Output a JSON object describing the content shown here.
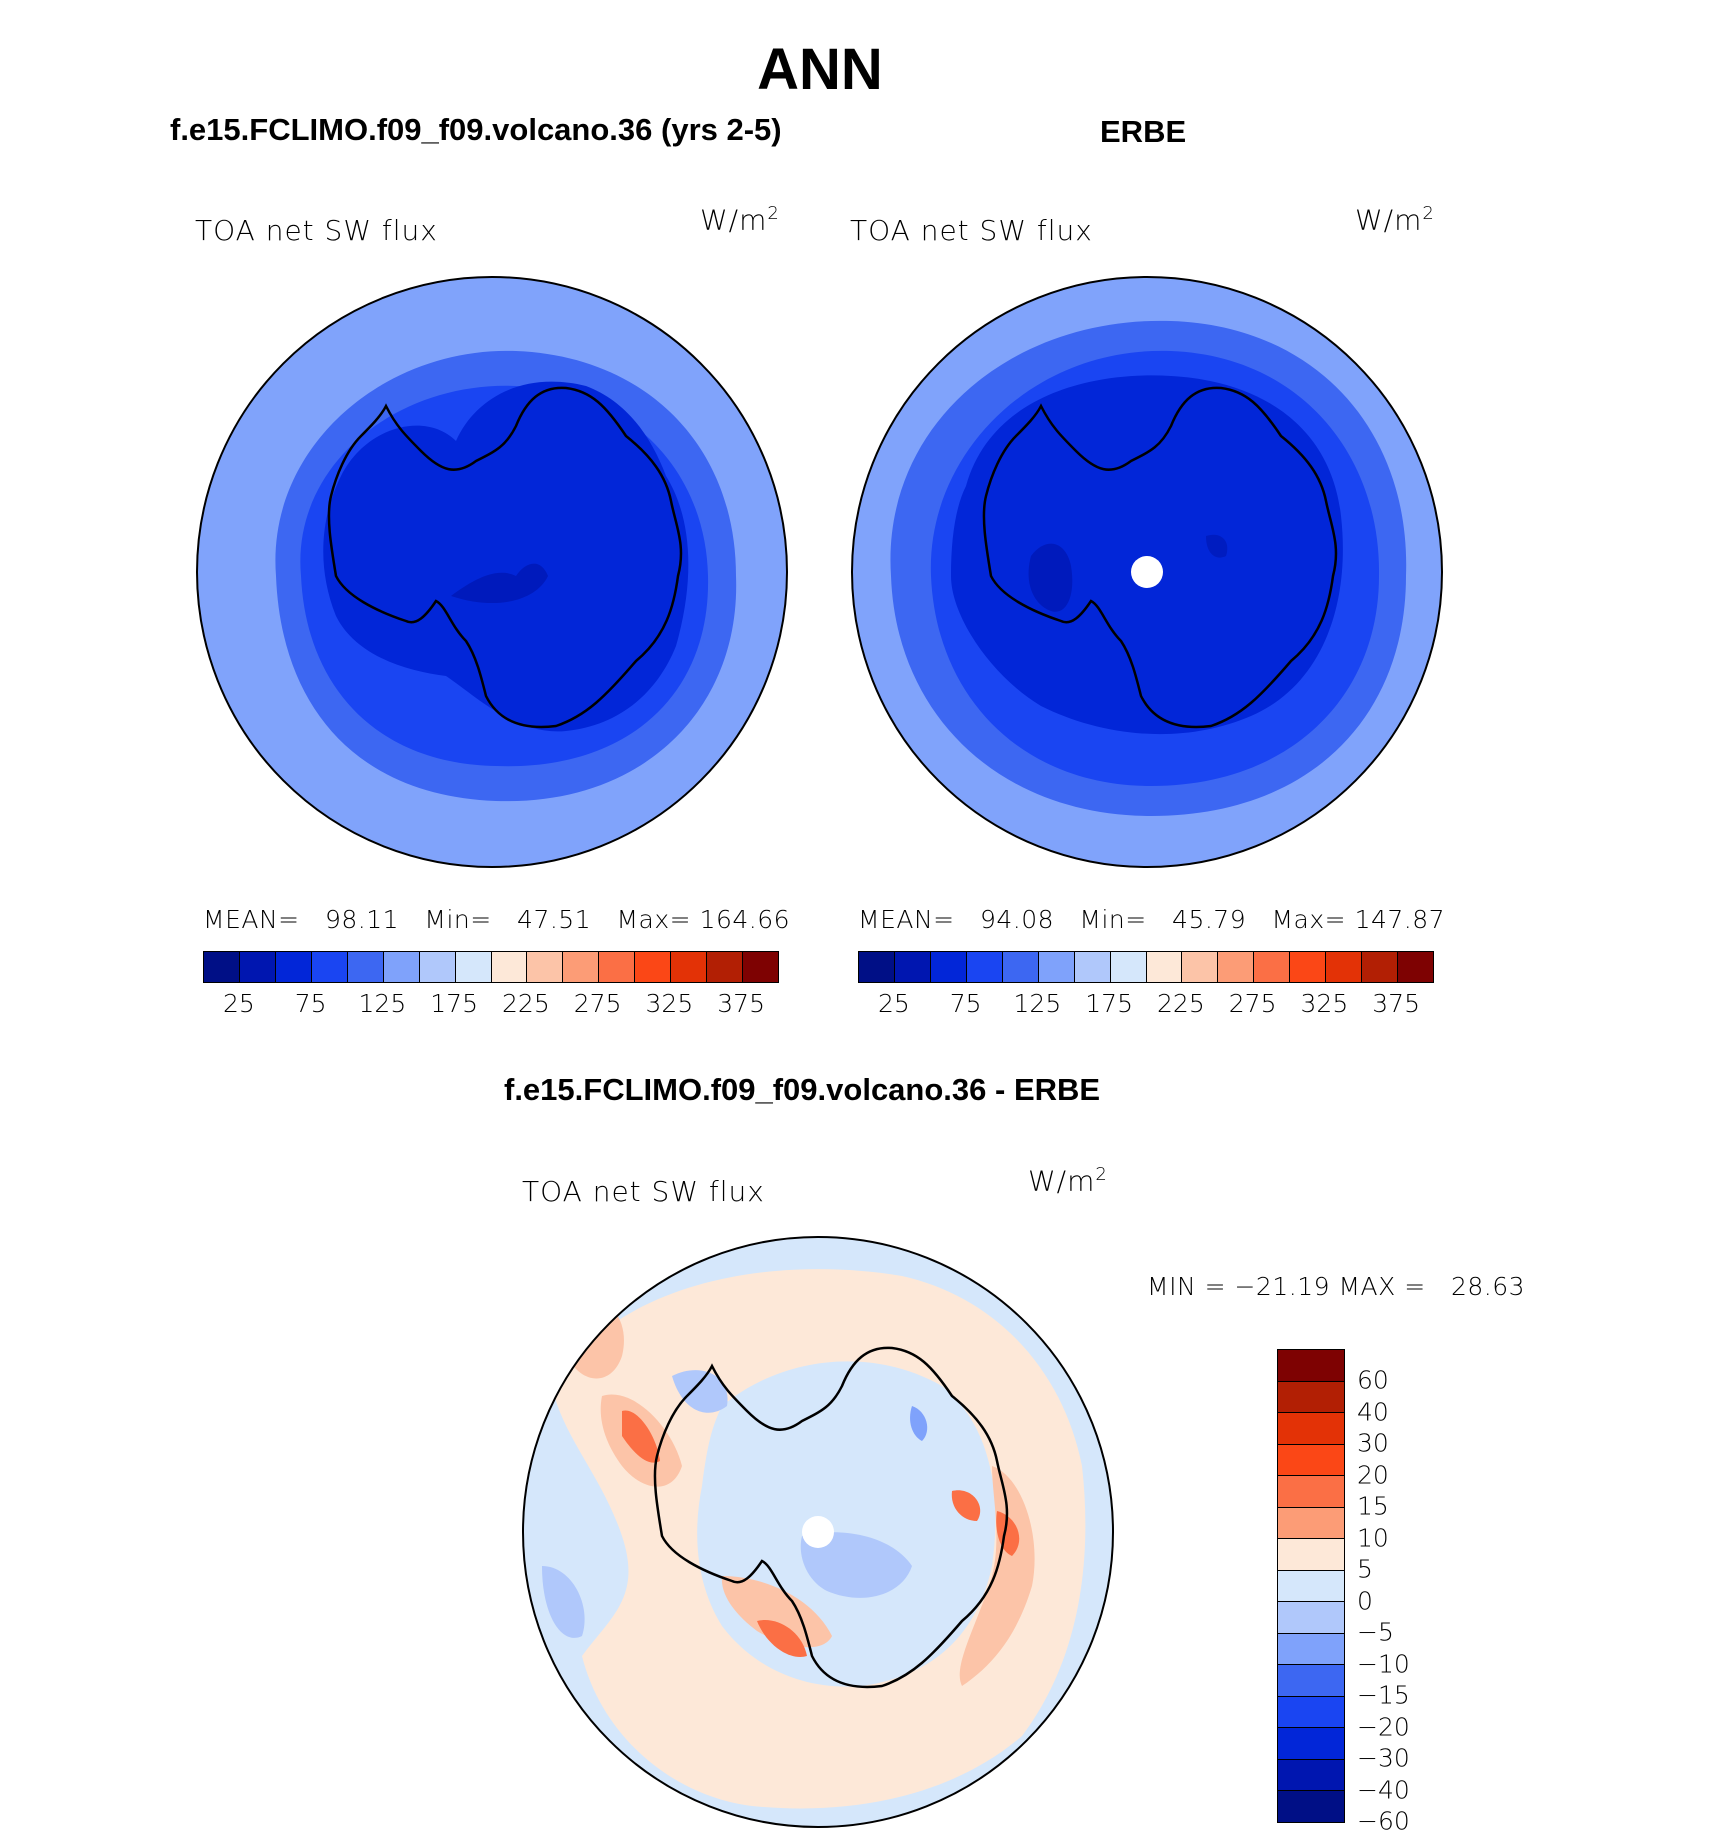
{
  "title": "ANN",
  "panel_left": {
    "case_title": "f.e15.FCLIMO.f09_f09.volcano.36 (yrs 2-5)",
    "variable": "TOA net SW flux",
    "units_base": "W/m",
    "units_exp": "2",
    "stats": {
      "mean_label": "MEAN=",
      "mean": "98.11",
      "min_label": "Min=",
      "min": "47.51",
      "max_label": "Max=",
      "max": "164.66"
    }
  },
  "panel_right": {
    "case_title": "ERBE",
    "variable": "TOA net SW flux",
    "units_base": "W/m",
    "units_exp": "2",
    "stats": {
      "mean_label": "MEAN=",
      "mean": "94.08",
      "min_label": "Min=",
      "min": "45.79",
      "max_label": "Max=",
      "max": "147.87"
    }
  },
  "panel_diff": {
    "case_title": "f.e15.FCLIMO.f09_f09.volcano.36 - ERBE",
    "variable": "TOA net SW flux",
    "units_base": "W/m",
    "units_exp": "2",
    "minmax": "MIN = −21.19 MAX =   28.63"
  },
  "colorbar_abs": {
    "colors": [
      "#000f86",
      "#0016b0",
      "#0226d8",
      "#1a45f2",
      "#3d67f2",
      "#7fa2fb",
      "#b0c8fb",
      "#d5e7fb",
      "#fde8d8",
      "#fcc4a8",
      "#fc9c76",
      "#fb6f45",
      "#fb4716",
      "#e33206",
      "#b21f04",
      "#7e0202"
    ],
    "ticks": [
      "25",
      "75",
      "125",
      "175",
      "225",
      "275",
      "325",
      "375"
    ]
  },
  "colorbar_diff": {
    "colors": [
      "#7e0202",
      "#b21f04",
      "#e33206",
      "#fb4716",
      "#fb6f45",
      "#fc9c76",
      "#fde8d8",
      "#d5e7fb",
      "#b0c8fb",
      "#7fa2fb",
      "#3d67f2",
      "#1a45f2",
      "#0226d8",
      "#0016b0",
      "#000f86"
    ],
    "ticks": [
      "60",
      "40",
      "30",
      "20",
      "15",
      "10",
      "5",
      "0",
      "−5",
      "−10",
      "−15",
      "−20",
      "−30",
      "−40",
      "−60"
    ]
  },
  "map_colors": {
    "outer": "#80a3fb",
    "ring1": "#3d67f2",
    "ring2": "#1a45f2",
    "inner": "#0226d8",
    "deep": "#0016b0",
    "diff_pos_light": "#fde8d8",
    "diff_pos_mid": "#fcc4a8",
    "diff_pos_strong": "#fb6f45",
    "diff_neg_light": "#d5e7fb",
    "diff_neg_mid": "#b0c8fb",
    "diff_neg_strong": "#7fa2fb"
  }
}
